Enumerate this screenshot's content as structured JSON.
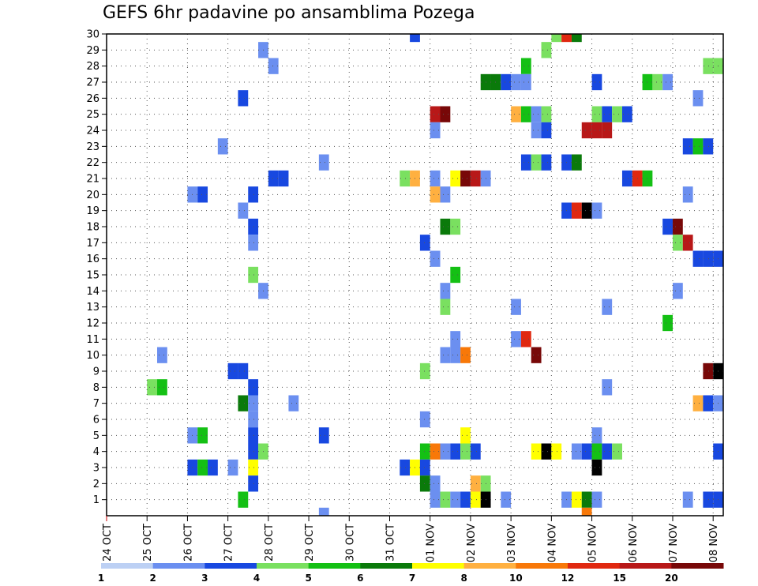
{
  "chart_data": {
    "type": "heatmap",
    "title": "GEFS 6hr padavine po ansamblima Pozega",
    "xlabel": "",
    "ylabel": "",
    "x_tick_labels": [
      "24 OCT",
      "25 OCT",
      "26 OCT",
      "27 OCT",
      "28 OCT",
      "29 OCT",
      "30 OCT",
      "31 OCT",
      "01 NOV",
      "02 NOV",
      "03 NOV",
      "04 NOV",
      "05 NOV",
      "06 NOV",
      "07 NOV",
      "08 NOV"
    ],
    "x_range_days": [
      0,
      15.25
    ],
    "y_tick_labels": [
      "1",
      "2",
      "3",
      "4",
      "5",
      "6",
      "7",
      "8",
      "9",
      "10",
      "11",
      "12",
      "13",
      "14",
      "15",
      "16",
      "17",
      "18",
      "19",
      "20",
      "21",
      "22",
      "23",
      "24",
      "25",
      "26",
      "27",
      "28",
      "29",
      "30"
    ],
    "y_range": [
      0,
      30
    ],
    "grid": true,
    "step_hours": 6,
    "colorbar": {
      "tick_labels": [
        "1",
        "2",
        "3",
        "4",
        "5",
        "6",
        "7",
        "8",
        "10",
        "12",
        "15",
        "20"
      ],
      "colors": [
        "#bcd0f4",
        "#6b8ff0",
        "#1848e0",
        "#7ae060",
        "#14c014",
        "#0a7a0a",
        "#ffff00",
        "#ffb040",
        "#f87808",
        "#e02810",
        "#b81818",
        "#780808"
      ]
    },
    "cells": [
      [
        30,
        7.5,
        2
      ],
      [
        30,
        11,
        3
      ],
      [
        30,
        11.25,
        9
      ],
      [
        30,
        11.5,
        5
      ],
      [
        29,
        3.75,
        1
      ],
      [
        29,
        10.75,
        3
      ],
      [
        28,
        4,
        1
      ],
      [
        28,
        10.25,
        4
      ],
      [
        28,
        14.75,
        3
      ],
      [
        28,
        15,
        3
      ],
      [
        27,
        9.25,
        5
      ],
      [
        27,
        9.5,
        5
      ],
      [
        27,
        9.75,
        2
      ],
      [
        27,
        10,
        1
      ],
      [
        27,
        10.25,
        1
      ],
      [
        27,
        12,
        2
      ],
      [
        27,
        13.25,
        4
      ],
      [
        27,
        13.5,
        3
      ],
      [
        27,
        13.75,
        1
      ],
      [
        26,
        3.25,
        2
      ],
      [
        26,
        14.5,
        1
      ],
      [
        25,
        8,
        10
      ],
      [
        25,
        8.25,
        11
      ],
      [
        25,
        10,
        7
      ],
      [
        25,
        10.25,
        4
      ],
      [
        25,
        10.5,
        1
      ],
      [
        25,
        10.75,
        3
      ],
      [
        25,
        12,
        3
      ],
      [
        25,
        12.25,
        2
      ],
      [
        25,
        12.5,
        3
      ],
      [
        25,
        12.75,
        2
      ],
      [
        24,
        8,
        1
      ],
      [
        24,
        10.5,
        1
      ],
      [
        24,
        10.75,
        2
      ],
      [
        24,
        11.75,
        10
      ],
      [
        24,
        12,
        10
      ],
      [
        24,
        12.25,
        10
      ],
      [
        23,
        2.75,
        1
      ],
      [
        23,
        14.25,
        2
      ],
      [
        23,
        14.5,
        4
      ],
      [
        23,
        14.75,
        2
      ],
      [
        22,
        5.25,
        1
      ],
      [
        22,
        10.25,
        2
      ],
      [
        22,
        10.5,
        3
      ],
      [
        22,
        10.75,
        2
      ],
      [
        22,
        11.25,
        2
      ],
      [
        22,
        11.5,
        5
      ],
      [
        21,
        4,
        2
      ],
      [
        21,
        4.25,
        2
      ],
      [
        21,
        7.25,
        3
      ],
      [
        21,
        7.5,
        7
      ],
      [
        21,
        8,
        1
      ],
      [
        21,
        8.5,
        6
      ],
      [
        21,
        8.75,
        11
      ],
      [
        21,
        9,
        10
      ],
      [
        21,
        9.25,
        1
      ],
      [
        21,
        12.75,
        2
      ],
      [
        21,
        13,
        9
      ],
      [
        21,
        13.25,
        4
      ],
      [
        20,
        2,
        1
      ],
      [
        20,
        2.25,
        2
      ],
      [
        20,
        3.5,
        2
      ],
      [
        20,
        8,
        7
      ],
      [
        20,
        8.25,
        1
      ],
      [
        20,
        14.25,
        1
      ],
      [
        19,
        3.25,
        1
      ],
      [
        19,
        11.25,
        2
      ],
      [
        19,
        11.5,
        9
      ],
      [
        19,
        11.75,
        12
      ],
      [
        19,
        12,
        1
      ],
      [
        18,
        3.5,
        2
      ],
      [
        18,
        8.25,
        5
      ],
      [
        18,
        8.5,
        3
      ],
      [
        18,
        13.75,
        2
      ],
      [
        18,
        14,
        11
      ],
      [
        17,
        3.5,
        1
      ],
      [
        17,
        7.75,
        2
      ],
      [
        17,
        14,
        3
      ],
      [
        17,
        14.25,
        10
      ],
      [
        16,
        8,
        1
      ],
      [
        16,
        14.5,
        2
      ],
      [
        16,
        14.75,
        2
      ],
      [
        16,
        15,
        2
      ],
      [
        15,
        3.5,
        3
      ],
      [
        15,
        8.5,
        4
      ],
      [
        14,
        3.75,
        1
      ],
      [
        14,
        8.25,
        1
      ],
      [
        14,
        14,
        1
      ],
      [
        13,
        8.25,
        3
      ],
      [
        13,
        10,
        1
      ],
      [
        13,
        12.25,
        1
      ],
      [
        12,
        13.75,
        4
      ],
      [
        11,
        8.5,
        1
      ],
      [
        11,
        10,
        1
      ],
      [
        11,
        10.25,
        9
      ],
      [
        10,
        1.25,
        1
      ],
      [
        10,
        8.25,
        1
      ],
      [
        10,
        8.5,
        1
      ],
      [
        10,
        8.75,
        8
      ],
      [
        10,
        10.5,
        11
      ],
      [
        9,
        3,
        2
      ],
      [
        9,
        3.25,
        2
      ],
      [
        9,
        7.75,
        3
      ],
      [
        9,
        14.75,
        11
      ],
      [
        9,
        15,
        12
      ],
      [
        8,
        1,
        3
      ],
      [
        8,
        1.25,
        4
      ],
      [
        8,
        3.5,
        2
      ],
      [
        8,
        12.25,
        1
      ],
      [
        7,
        3.25,
        5
      ],
      [
        7,
        3.5,
        1
      ],
      [
        7,
        4.5,
        1
      ],
      [
        7,
        14.5,
        7
      ],
      [
        7,
        14.75,
        2
      ],
      [
        7,
        15,
        1
      ],
      [
        6,
        3.5,
        1
      ],
      [
        6,
        7.75,
        1
      ],
      [
        5,
        2,
        1
      ],
      [
        5,
        2.25,
        4
      ],
      [
        5,
        3.5,
        2
      ],
      [
        5,
        5.25,
        2
      ],
      [
        5,
        8.75,
        6
      ],
      [
        5,
        12,
        1
      ],
      [
        4,
        3.5,
        2
      ],
      [
        4,
        3.75,
        3
      ],
      [
        4,
        7.75,
        4
      ],
      [
        4,
        8,
        8
      ],
      [
        4,
        8.25,
        1
      ],
      [
        4,
        8.5,
        2
      ],
      [
        4,
        8.75,
        3
      ],
      [
        4,
        9,
        2
      ],
      [
        4,
        10.5,
        6
      ],
      [
        4,
        10.75,
        12
      ],
      [
        4,
        11,
        6
      ],
      [
        4,
        11.5,
        1
      ],
      [
        4,
        11.75,
        2
      ],
      [
        4,
        12,
        4
      ],
      [
        4,
        12.25,
        2
      ],
      [
        4,
        12.5,
        3
      ],
      [
        4,
        15,
        2
      ],
      [
        3,
        2,
        2
      ],
      [
        3,
        2.25,
        4
      ],
      [
        3,
        2.5,
        2
      ],
      [
        3,
        3,
        1
      ],
      [
        3,
        3.5,
        6
      ],
      [
        3,
        7.25,
        2
      ],
      [
        3,
        7.5,
        6
      ],
      [
        3,
        7.75,
        2
      ],
      [
        3,
        12,
        12
      ],
      [
        2,
        3.5,
        2
      ],
      [
        2,
        7.75,
        5
      ],
      [
        2,
        8,
        1
      ],
      [
        2,
        9,
        7
      ],
      [
        2,
        9.25,
        3
      ],
      [
        1,
        3.25,
        4
      ],
      [
        1,
        8,
        1
      ],
      [
        1,
        8.25,
        3
      ],
      [
        1,
        8.5,
        1
      ],
      [
        1,
        8.75,
        2
      ],
      [
        1,
        9,
        6
      ],
      [
        1,
        9.25,
        12
      ],
      [
        1,
        9.75,
        1
      ],
      [
        1,
        11.25,
        1
      ],
      [
        1,
        11.5,
        6
      ],
      [
        1,
        11.75,
        5
      ],
      [
        1,
        12,
        1
      ],
      [
        1,
        14.25,
        1
      ],
      [
        1,
        14.75,
        2
      ],
      [
        1,
        15,
        2
      ],
      [
        0,
        5.25,
        1
      ],
      [
        0,
        11.75,
        8
      ]
    ]
  }
}
